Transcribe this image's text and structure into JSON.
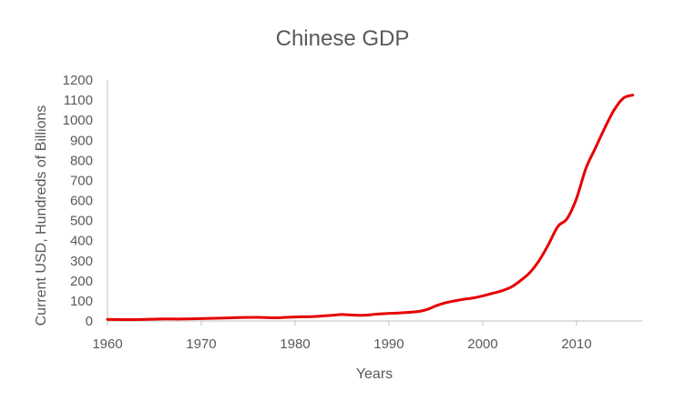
{
  "chart_data": {
    "type": "line",
    "title": "Chinese GDP",
    "xlabel": "Years",
    "ylabel": "Current USD, Hundreds of Billions",
    "xlim": [
      1960,
      2017
    ],
    "ylim": [
      0,
      1200
    ],
    "x_ticks": [
      1960,
      1970,
      1980,
      1990,
      2000,
      2010
    ],
    "y_ticks": [
      0,
      100,
      200,
      300,
      400,
      500,
      600,
      700,
      800,
      900,
      1000,
      1100,
      1200
    ],
    "grid": false,
    "legend": "none",
    "series": [
      {
        "color": "#e60000",
        "x": [
          1960,
          1962,
          1964,
          1966,
          1968,
          1970,
          1972,
          1974,
          1976,
          1978,
          1980,
          1982,
          1984,
          1985,
          1987,
          1989,
          1991,
          1993,
          1994,
          1995,
          1996,
          1997,
          1998,
          1999,
          2000,
          2001,
          2002,
          2003,
          2004,
          2005,
          2006,
          2007,
          2008,
          2009,
          2010,
          2011,
          2012,
          2013,
          2014,
          2015,
          2016
        ],
        "y": [
          8,
          7,
          8,
          10,
          10,
          12,
          14,
          17,
          18,
          16,
          20,
          22,
          28,
          32,
          28,
          35,
          40,
          46,
          56,
          75,
          90,
          100,
          108,
          115,
          125,
          137,
          150,
          168,
          200,
          240,
          300,
          380,
          470,
          510,
          610,
          760,
          860,
          960,
          1050,
          1110,
          1125
        ]
      }
    ]
  }
}
